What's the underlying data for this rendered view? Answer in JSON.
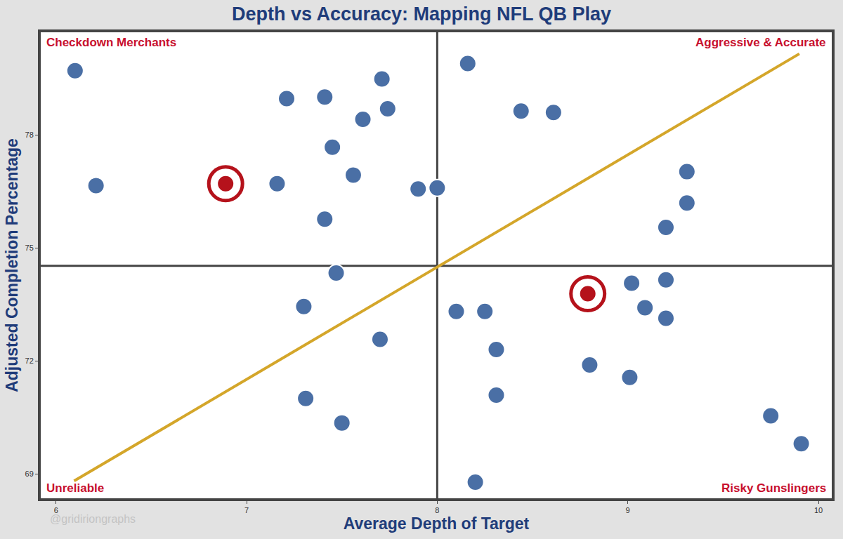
{
  "chart_data": {
    "type": "scatter",
    "title": "Depth vs Accuracy: Mapping NFL QB Play",
    "x_label": "Average Depth of Target",
    "y_label": "Adjusted Completion Percentage",
    "xlim": [
      5.92,
      10.07
    ],
    "ylim": [
      68.35,
      80.72
    ],
    "xticks": [
      6,
      7,
      8,
      9,
      10
    ],
    "yticks": [
      69,
      72,
      75,
      78
    ],
    "grid": false,
    "x": [
      6.1,
      7.21,
      7.41,
      7.71,
      7.74,
      7.61,
      7.45,
      7.56,
      6.21,
      6.89,
      7.16,
      7.41,
      7.9,
      8.0,
      8.16,
      8.44,
      8.61,
      9.31,
      9.31,
      9.2,
      7.47,
      7.3,
      7.7,
      7.31,
      7.5,
      8.1,
      8.25,
      8.31,
      8.31,
      8.2,
      8.79,
      9.02,
      9.2,
      9.09,
      9.2,
      8.8,
      9.01,
      9.75,
      9.91
    ],
    "values": [
      79.7,
      78.96,
      79.0,
      79.48,
      78.69,
      78.41,
      77.67,
      76.93,
      76.65,
      76.7,
      76.7,
      75.76,
      76.56,
      76.59,
      79.89,
      78.63,
      78.59,
      77.02,
      76.19,
      75.54,
      74.33,
      73.44,
      72.57,
      71.0,
      70.35,
      73.31,
      73.31,
      72.3,
      71.09,
      68.78,
      73.78,
      74.06,
      74.15,
      73.41,
      73.13,
      71.89,
      71.56,
      70.54,
      69.8
    ],
    "highlight": [
      false,
      false,
      false,
      false,
      false,
      false,
      false,
      false,
      false,
      true,
      false,
      false,
      false,
      false,
      false,
      false,
      false,
      false,
      false,
      false,
      false,
      false,
      false,
      false,
      false,
      false,
      false,
      false,
      false,
      false,
      true,
      false,
      false,
      false,
      false,
      false,
      false,
      false,
      false
    ],
    "colors": [
      "#4a6fa5",
      "#4a6fa5",
      "#4a6fa5",
      "#4a6fa5",
      "#4a6fa5",
      "#4a6fa5",
      "#4a6fa5",
      "#4a6fa5",
      "#4a6fa5",
      "#b5121b",
      "#4a6fa5",
      "#4a6fa5",
      "#4a6fa5",
      "#4a6fa5",
      "#4a6fa5",
      "#4a6fa5",
      "#4a6fa5",
      "#4a6fa5",
      "#4a6fa5",
      "#4a6fa5",
      "#4a6fa5",
      "#4a6fa5",
      "#4a6fa5",
      "#4a6fa5",
      "#4a6fa5",
      "#4a6fa5",
      "#4a6fa5",
      "#4a6fa5",
      "#4a6fa5",
      "#4a6fa5",
      "#b5121b",
      "#4a6fa5",
      "#4a6fa5",
      "#4a6fa5",
      "#4a6fa5",
      "#4a6fa5",
      "#4a6fa5",
      "#4a6fa5",
      "#4a6fa5"
    ],
    "reference_lines": {
      "x": 8,
      "y": 74.52,
      "color": "#444444"
    },
    "trend_line": {
      "x": [
        6.095,
        9.9
      ],
      "values": [
        68.81,
        80.15
      ],
      "color": "#d4a62a"
    },
    "quadrant_labels": {
      "top_left": "Checkdown Merchants",
      "top_right": "Aggressive & Accurate",
      "bottom_left": "Unreliable",
      "bottom_right": "Risky Gunslingers",
      "color": "#c8102e"
    },
    "watermark": "@gridiriongraphs"
  }
}
